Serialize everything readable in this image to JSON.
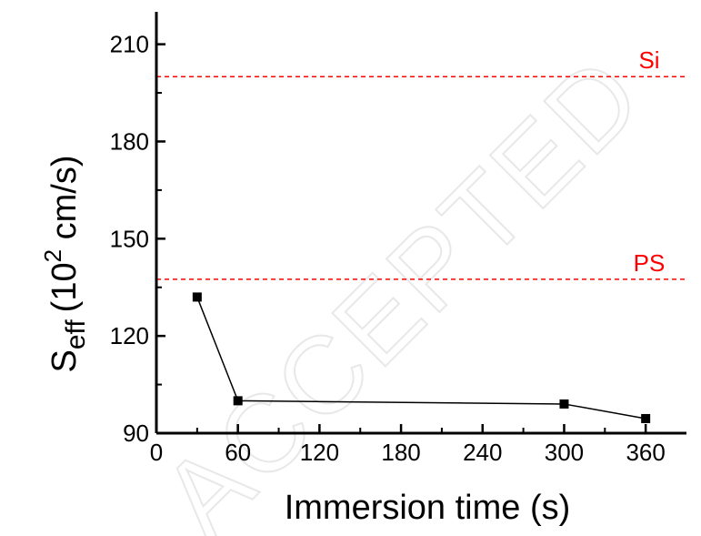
{
  "watermark": "ACCEPTED",
  "colors": {
    "axis": "#000000",
    "series": "#000000",
    "reference": "#ff0000"
  },
  "chart_data": {
    "type": "line",
    "xlabel": "Immersion time (s)",
    "ylabel": {
      "symbol": "S",
      "symbol_subscript": "eff",
      "unit_open": "(10",
      "unit_exponent": "2",
      "unit_rest": " cm/s)"
    },
    "xlim": [
      0,
      390
    ],
    "ylim": [
      90,
      220
    ],
    "x_ticks": [
      0,
      60,
      120,
      180,
      240,
      300,
      360
    ],
    "y_ticks": [
      90,
      120,
      150,
      180,
      210
    ],
    "grid": false,
    "series": [
      {
        "x": [
          30,
          60,
          300,
          360
        ],
        "y": [
          132,
          100,
          99,
          94.5
        ],
        "marker": "square"
      }
    ],
    "reference_lines": [
      {
        "label": "Si",
        "y": 200
      },
      {
        "label": "PS",
        "y": 137.5
      }
    ]
  }
}
